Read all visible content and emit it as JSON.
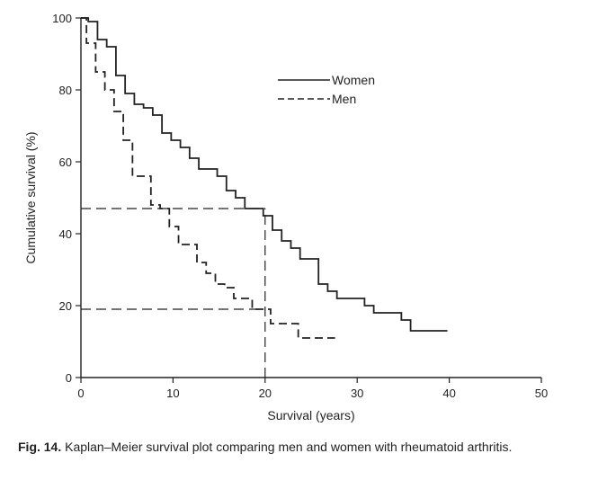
{
  "chart_data": {
    "type": "line",
    "subtype": "step",
    "title": "",
    "xlabel": "Survival (years)",
    "ylabel": "Cumulative survival (%)",
    "xlim": [
      0,
      50
    ],
    "ylim": [
      0,
      100
    ],
    "xticks": [
      0,
      10,
      20,
      30,
      40,
      50
    ],
    "yticks": [
      0,
      20,
      40,
      60,
      80,
      100
    ],
    "grid": false,
    "legend_position": "top-right",
    "series": [
      {
        "name": "Women",
        "style": "solid",
        "points": [
          [
            0,
            100
          ],
          [
            0.8,
            100
          ],
          [
            0.8,
            99
          ],
          [
            1.8,
            99
          ],
          [
            1.8,
            94
          ],
          [
            2.8,
            94
          ],
          [
            2.8,
            92
          ],
          [
            3.8,
            92
          ],
          [
            3.8,
            84
          ],
          [
            4.8,
            84
          ],
          [
            4.8,
            79
          ],
          [
            5.8,
            79
          ],
          [
            5.8,
            76
          ],
          [
            6.8,
            76
          ],
          [
            6.8,
            75
          ],
          [
            7.8,
            75
          ],
          [
            7.8,
            73
          ],
          [
            8.8,
            73
          ],
          [
            8.8,
            68
          ],
          [
            9.8,
            68
          ],
          [
            9.8,
            66
          ],
          [
            10.8,
            66
          ],
          [
            10.8,
            64
          ],
          [
            11.8,
            64
          ],
          [
            11.8,
            61
          ],
          [
            12.8,
            61
          ],
          [
            12.8,
            58
          ],
          [
            14.8,
            58
          ],
          [
            14.8,
            56
          ],
          [
            15.8,
            56
          ],
          [
            15.8,
            52
          ],
          [
            16.8,
            52
          ],
          [
            16.8,
            50
          ],
          [
            17.8,
            50
          ],
          [
            17.8,
            47
          ],
          [
            19.8,
            47
          ],
          [
            19.8,
            45
          ],
          [
            20.8,
            45
          ],
          [
            20.8,
            41
          ],
          [
            21.8,
            41
          ],
          [
            21.8,
            38
          ],
          [
            22.8,
            38
          ],
          [
            22.8,
            36
          ],
          [
            23.8,
            36
          ],
          [
            23.8,
            33
          ],
          [
            25.8,
            33
          ],
          [
            25.8,
            26
          ],
          [
            26.8,
            26
          ],
          [
            26.8,
            24
          ],
          [
            27.8,
            24
          ],
          [
            27.8,
            22
          ],
          [
            30.8,
            22
          ],
          [
            30.8,
            20
          ],
          [
            31.8,
            20
          ],
          [
            31.8,
            18
          ],
          [
            34.8,
            18
          ],
          [
            34.8,
            16
          ],
          [
            35.8,
            16
          ],
          [
            35.8,
            13
          ],
          [
            39.8,
            13
          ]
        ]
      },
      {
        "name": "Men",
        "style": "dashed",
        "points": [
          [
            0,
            100
          ],
          [
            0.6,
            100
          ],
          [
            0.6,
            93
          ],
          [
            1.6,
            93
          ],
          [
            1.6,
            85
          ],
          [
            2.6,
            85
          ],
          [
            2.6,
            80
          ],
          [
            3.6,
            80
          ],
          [
            3.6,
            74
          ],
          [
            4.6,
            74
          ],
          [
            4.6,
            66
          ],
          [
            5.6,
            66
          ],
          [
            5.6,
            56
          ],
          [
            6.6,
            56
          ],
          [
            6.6,
            56
          ],
          [
            7.6,
            56
          ],
          [
            7.6,
            48
          ],
          [
            8.6,
            48
          ],
          [
            8.6,
            47
          ],
          [
            9.6,
            47
          ],
          [
            9.6,
            42
          ],
          [
            10.6,
            42
          ],
          [
            10.6,
            37
          ],
          [
            12.6,
            37
          ],
          [
            12.6,
            32
          ],
          [
            13.6,
            32
          ],
          [
            13.6,
            29
          ],
          [
            14.6,
            29
          ],
          [
            14.6,
            26
          ],
          [
            15.6,
            26
          ],
          [
            15.6,
            25
          ],
          [
            16.6,
            25
          ],
          [
            16.6,
            22
          ],
          [
            18.6,
            22
          ],
          [
            18.6,
            19
          ],
          [
            20.6,
            19
          ],
          [
            20.6,
            15
          ],
          [
            23.6,
            15
          ],
          [
            23.6,
            11
          ],
          [
            27.6,
            11
          ]
        ]
      }
    ],
    "annotations": [
      {
        "type": "reference-hline",
        "y": 47,
        "x_from": 0,
        "x_to": 20
      },
      {
        "type": "reference-hline",
        "y": 19,
        "x_from": 0,
        "x_to": 20
      },
      {
        "type": "reference-vline",
        "x": 20,
        "y_from": 0,
        "y_to": 47
      }
    ]
  },
  "caption": {
    "label": "Fig. 14.",
    "text": "Kaplan–Meier survival plot comparing men and women with rheumatoid arthritis."
  },
  "colors": {
    "line": "#222222",
    "text": "#222222",
    "background": "#ffffff"
  }
}
